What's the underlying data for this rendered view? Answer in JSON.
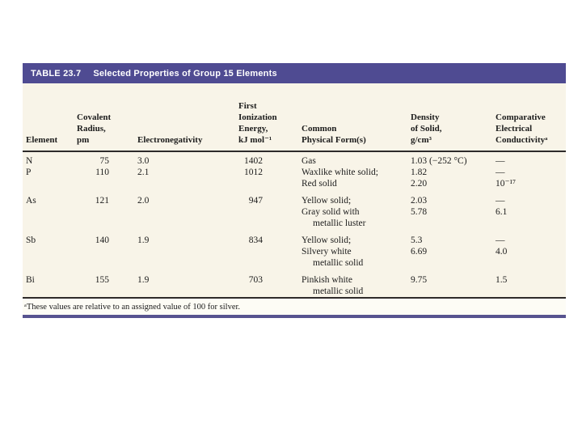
{
  "table": {
    "tag": "TABLE 23.7",
    "title": "Selected Properties of Group 15 Elements",
    "headers": [
      {
        "lines": [
          "Element"
        ]
      },
      {
        "lines": [
          "Covalent",
          "Radius,",
          "pm"
        ]
      },
      {
        "lines": [
          "Electronegativity"
        ]
      },
      {
        "lines": [
          "First",
          "Ionization",
          "Energy,",
          "kJ mol⁻¹"
        ]
      },
      {
        "lines": [
          "Common",
          "Physical Form(s)"
        ]
      },
      {
        "lines": [
          "Density",
          "of Solid,",
          "g/cm³"
        ]
      },
      {
        "lines": [
          "Comparative",
          "Electrical",
          "Conductivityᵃ"
        ]
      }
    ],
    "rows": [
      {
        "element": "N",
        "radius": "75",
        "electronegativity": "3.0",
        "ionization": "1402",
        "lines": [
          {
            "form": "Gas",
            "density": "1.03 (−252 °C)",
            "conductivity": "—"
          }
        ]
      },
      {
        "element": "P",
        "radius": "110",
        "electronegativity": "2.1",
        "ionization": "1012",
        "lines": [
          {
            "form": "Waxlike white solid;",
            "density": "1.82",
            "conductivity": "—"
          },
          {
            "form": "Red solid",
            "density": "2.20",
            "conductivity": "10⁻¹⁷"
          }
        ]
      },
      {
        "element": "As",
        "radius": "121",
        "electronegativity": "2.0",
        "ionization": "947",
        "lines": [
          {
            "form": "Yellow solid;",
            "density": "2.03",
            "conductivity": "—"
          },
          {
            "form": "Gray solid with",
            "density": "5.78",
            "conductivity": "6.1"
          },
          {
            "form": "metallic luster",
            "indent": true
          }
        ]
      },
      {
        "element": "Sb",
        "radius": "140",
        "electronegativity": "1.9",
        "ionization": "834",
        "lines": [
          {
            "form": "Yellow solid;",
            "density": "5.3",
            "conductivity": "—"
          },
          {
            "form": "Silvery white",
            "density": "6.69",
            "conductivity": "4.0"
          },
          {
            "form": "metallic solid",
            "indent": true
          }
        ]
      },
      {
        "element": "Bi",
        "radius": "155",
        "electronegativity": "1.9",
        "ionization": "703",
        "lines": [
          {
            "form": "Pinkish white",
            "density": "9.75",
            "conductivity": "1.5"
          },
          {
            "form": "metallic solid",
            "indent": true
          }
        ]
      }
    ],
    "footnote": "ᵃThese values are relative to an assigned value of 100 for silver.",
    "colors": {
      "header_bar": "#4f4b92",
      "body_bg": "#f8f4e8",
      "footnote_bg": "#fdfcf5",
      "rule": "#2e2b2b",
      "bottom_rule": "#57538f",
      "page_bg": "#ffffff"
    }
  }
}
